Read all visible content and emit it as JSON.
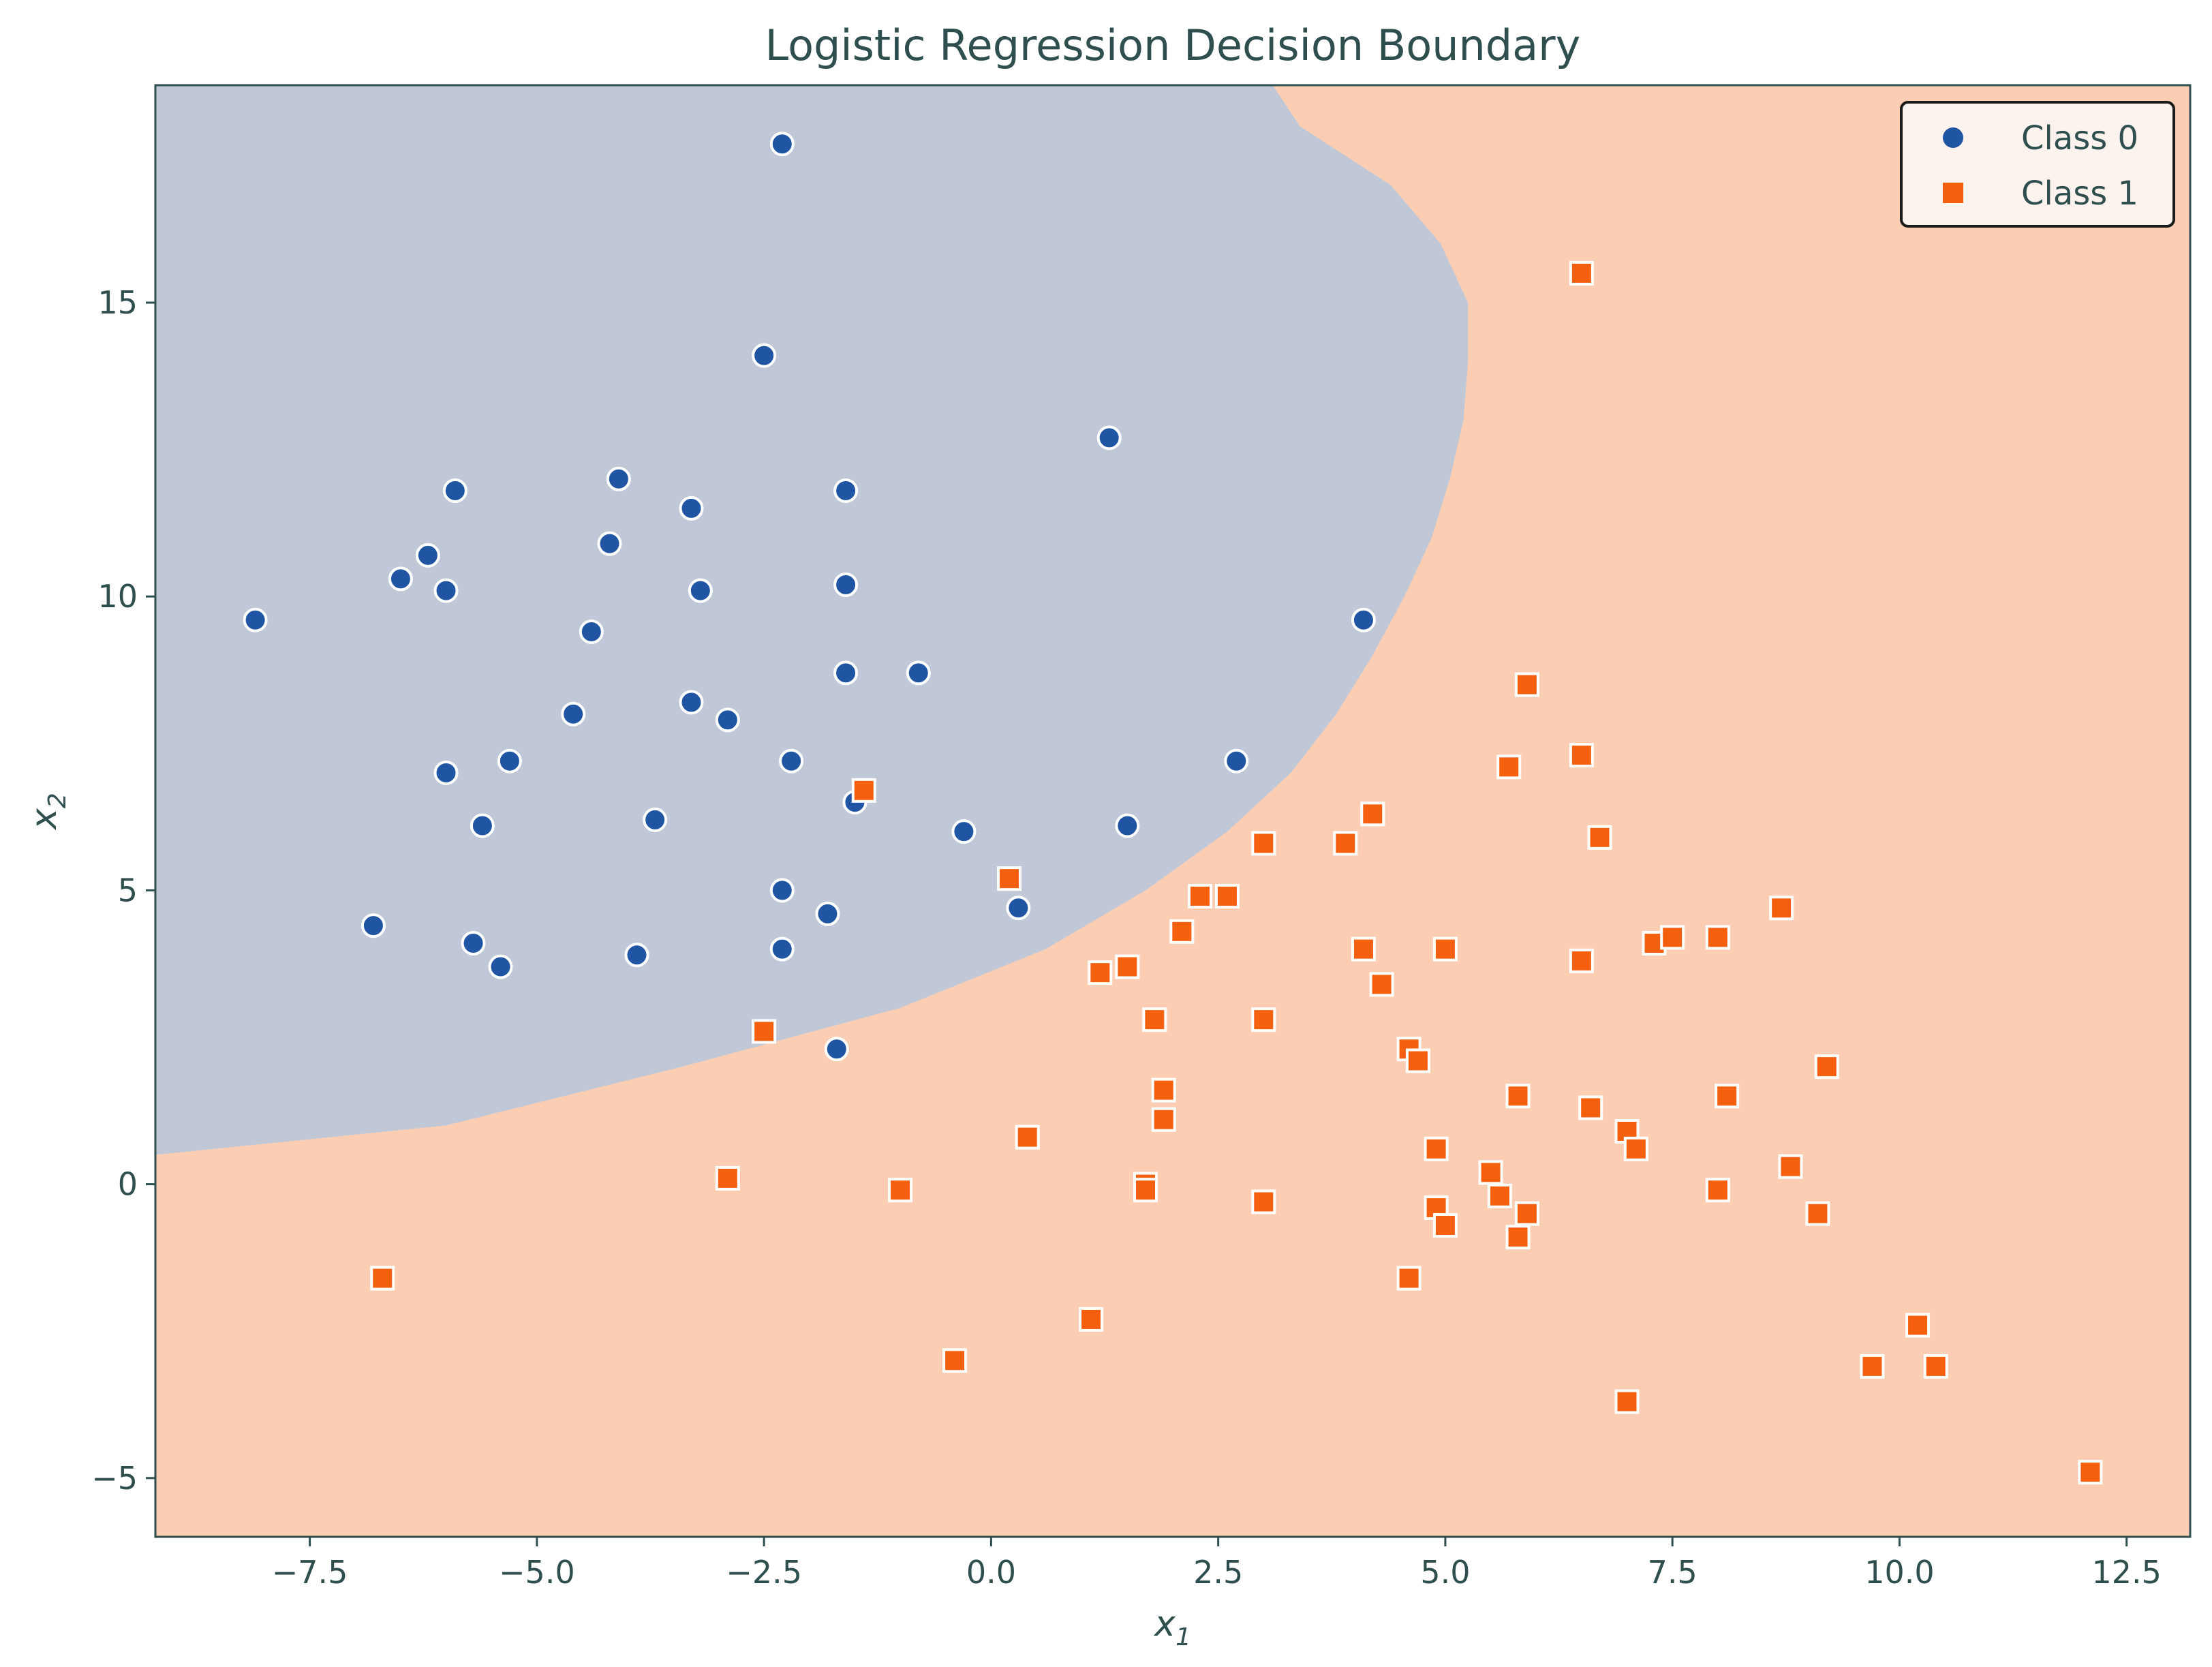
{
  "chart_data": {
    "type": "scatter",
    "title": "Logistic Regression Decision Boundary",
    "xlabel_base": "x",
    "xlabel_sub": "1",
    "ylabel_base": "x",
    "ylabel_sub": "2",
    "xlim": [
      -9.2,
      13.2
    ],
    "ylim": [
      -6.0,
      18.7
    ],
    "xticks": [
      -7.5,
      -5.0,
      -2.5,
      0.0,
      2.5,
      5.0,
      7.5,
      10.0,
      12.5
    ],
    "xtick_labels": [
      "−7.5",
      "−5.0",
      "−2.5",
      "0.0",
      "2.5",
      "5.0",
      "7.5",
      "10.0",
      "12.5"
    ],
    "yticks": [
      -5,
      0,
      5,
      10,
      15
    ],
    "ytick_labels": [
      "−5",
      "0",
      "5",
      "10",
      "15"
    ],
    "grid": false,
    "legend_position": "top-right",
    "colors": {
      "class0_region": "#c0c8d8",
      "class1_region": "#fbceb4",
      "class0_marker": "#1f55a3",
      "class1_marker": "#f5600f",
      "axes_text": "#2f4f4f",
      "legend_bg": "#fdf3ee"
    },
    "decision_boundary": {
      "description": "class 0 region lies left of / above the boundary curve (x1 values per x2 level)",
      "x2": [
        0.5,
        1.0,
        2.0,
        3.0,
        4.0,
        5.0,
        6.0,
        7.0,
        8.0,
        9.0,
        10.0,
        11.0,
        12.0,
        13.0,
        14.0,
        15.0,
        16.0,
        17.0,
        18.0,
        18.7
      ],
      "x1": [
        -9.2,
        -6.0,
        -3.4,
        -1.0,
        0.6,
        1.7,
        2.6,
        3.3,
        3.8,
        4.2,
        4.55,
        4.85,
        5.05,
        5.2,
        5.25,
        5.25,
        4.95,
        4.4,
        3.4,
        3.1
      ]
    },
    "series": [
      {
        "name": "Class 0",
        "marker": "circle",
        "points": [
          [
            -2.3,
            17.7
          ],
          [
            -2.5,
            14.1
          ],
          [
            1.3,
            12.7
          ],
          [
            -4.1,
            12.0
          ],
          [
            -5.9,
            11.8
          ],
          [
            -1.6,
            11.8
          ],
          [
            -3.3,
            11.5
          ],
          [
            -6.2,
            10.7
          ],
          [
            -4.2,
            10.9
          ],
          [
            -6.5,
            10.3
          ],
          [
            -6.0,
            10.1
          ],
          [
            -3.2,
            10.1
          ],
          [
            -1.6,
            10.2
          ],
          [
            -8.1,
            9.6
          ],
          [
            4.1,
            9.6
          ],
          [
            -4.4,
            9.4
          ],
          [
            -1.6,
            8.7
          ],
          [
            -0.8,
            8.7
          ],
          [
            -4.6,
            8.0
          ],
          [
            -3.3,
            8.2
          ],
          [
            -2.9,
            7.9
          ],
          [
            -5.3,
            7.2
          ],
          [
            -2.2,
            7.2
          ],
          [
            -6.0,
            7.0
          ],
          [
            2.7,
            7.2
          ],
          [
            -1.5,
            6.5
          ],
          [
            -5.6,
            6.1
          ],
          [
            -3.7,
            6.2
          ],
          [
            1.5,
            6.1
          ],
          [
            -0.3,
            6.0
          ],
          [
            -2.3,
            5.0
          ],
          [
            0.3,
            4.7
          ],
          [
            -1.8,
            4.6
          ],
          [
            -6.8,
            4.4
          ],
          [
            -5.7,
            4.1
          ],
          [
            -5.4,
            3.7
          ],
          [
            -3.9,
            3.9
          ],
          [
            -2.3,
            4.0
          ],
          [
            -1.7,
            2.3
          ]
        ]
      },
      {
        "name": "Class 1",
        "marker": "square",
        "points": [
          [
            6.5,
            15.5
          ],
          [
            5.9,
            8.5
          ],
          [
            6.5,
            7.3
          ],
          [
            5.7,
            7.1
          ],
          [
            -1.4,
            6.7
          ],
          [
            4.2,
            6.3
          ],
          [
            6.7,
            5.9
          ],
          [
            3.0,
            5.8
          ],
          [
            3.9,
            5.8
          ],
          [
            0.2,
            5.2
          ],
          [
            2.3,
            4.9
          ],
          [
            2.6,
            4.9
          ],
          [
            8.7,
            4.7
          ],
          [
            2.1,
            4.3
          ],
          [
            4.1,
            4.0
          ],
          [
            5.0,
            4.0
          ],
          [
            7.3,
            4.1
          ],
          [
            7.5,
            4.2
          ],
          [
            8.0,
            4.2
          ],
          [
            6.5,
            3.8
          ],
          [
            1.5,
            3.7
          ],
          [
            1.2,
            3.6
          ],
          [
            4.3,
            3.4
          ],
          [
            1.8,
            2.8
          ],
          [
            3.0,
            2.8
          ],
          [
            -2.5,
            2.6
          ],
          [
            4.6,
            2.3
          ],
          [
            4.7,
            2.1
          ],
          [
            9.2,
            2.0
          ],
          [
            1.9,
            1.6
          ],
          [
            5.8,
            1.5
          ],
          [
            8.1,
            1.5
          ],
          [
            6.6,
            1.3
          ],
          [
            1.9,
            1.1
          ],
          [
            0.4,
            0.8
          ],
          [
            7.0,
            0.9
          ],
          [
            4.9,
            0.6
          ],
          [
            7.1,
            0.6
          ],
          [
            8.8,
            0.3
          ],
          [
            5.5,
            0.2
          ],
          [
            -2.9,
            0.1
          ],
          [
            1.7,
            0.0
          ],
          [
            8.0,
            -0.1
          ],
          [
            -1.0,
            -0.1
          ],
          [
            1.7,
            -0.1
          ],
          [
            5.6,
            -0.2
          ],
          [
            3.0,
            -0.3
          ],
          [
            4.9,
            -0.4
          ],
          [
            5.9,
            -0.5
          ],
          [
            9.1,
            -0.5
          ],
          [
            5.0,
            -0.7
          ],
          [
            5.8,
            -0.9
          ],
          [
            4.6,
            -1.6
          ],
          [
            -6.7,
            -1.6
          ],
          [
            1.1,
            -2.3
          ],
          [
            10.2,
            -2.4
          ],
          [
            -0.4,
            -3.0
          ],
          [
            9.7,
            -3.1
          ],
          [
            10.4,
            -3.1
          ],
          [
            7.0,
            -3.7
          ],
          [
            12.1,
            -4.9
          ]
        ]
      }
    ]
  }
}
